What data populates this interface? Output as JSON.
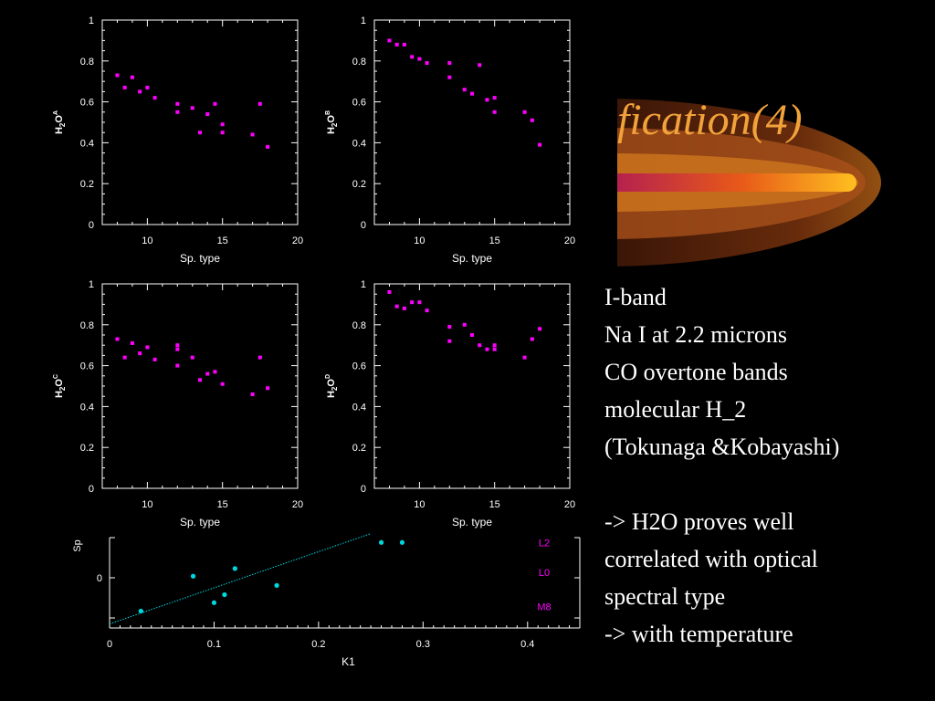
{
  "slide": {
    "title": "fication(4)",
    "bullets": [
      "I-band",
      "Na I at 2.2 microns",
      "CO overtone bands",
      "molecular H_2",
      "(Tokunaga &Kobayashi)",
      "",
      "-> H2O proves well",
      "correlated with optical",
      "spectral type",
      "-> with temperature"
    ],
    "colors": {
      "point": "#ff00ff",
      "fit": "#00d8e0",
      "title": "#f2a23a",
      "axes": "#ffffff"
    }
  },
  "chart_data": [
    {
      "type": "scatter",
      "xlabel": "Sp. type",
      "ylabel_main": "H2O",
      "ylabel_sup": "A",
      "xlim": [
        7,
        20
      ],
      "ylim": [
        0,
        1
      ],
      "xticks": [
        10,
        15,
        20
      ],
      "yticks": [
        0,
        0.2,
        0.4,
        0.6,
        0.8,
        1
      ],
      "yticklabels": [
        "0",
        "0.2",
        "0.4",
        "0.6",
        "0.8",
        "1"
      ],
      "x": [
        8,
        8.5,
        9,
        9.5,
        10,
        10.5,
        12,
        12,
        13,
        13.5,
        14,
        14.5,
        15,
        15,
        17,
        17.5,
        18
      ],
      "y": [
        0.73,
        0.67,
        0.72,
        0.65,
        0.67,
        0.62,
        0.59,
        0.55,
        0.57,
        0.45,
        0.54,
        0.59,
        0.49,
        0.45,
        0.44,
        0.59,
        0.38
      ]
    },
    {
      "type": "scatter",
      "xlabel": "Sp. type",
      "ylabel_main": "H2O",
      "ylabel_sup": "B",
      "xlim": [
        7,
        20
      ],
      "ylim": [
        0,
        1
      ],
      "xticks": [
        10,
        15,
        20
      ],
      "yticks": [
        0,
        0.2,
        0.4,
        0.6,
        0.8,
        1
      ],
      "yticklabels": [
        "0",
        "0.2",
        "0.4",
        "0.6",
        "0.8",
        "1"
      ],
      "x": [
        8,
        8.5,
        9,
        9.5,
        10,
        10.5,
        12,
        12,
        13,
        13.5,
        14,
        14.5,
        15,
        15,
        17,
        17.5,
        18
      ],
      "y": [
        0.9,
        0.88,
        0.88,
        0.82,
        0.81,
        0.79,
        0.79,
        0.72,
        0.66,
        0.64,
        0.78,
        0.61,
        0.62,
        0.55,
        0.55,
        0.51,
        0.39
      ]
    },
    {
      "type": "scatter",
      "xlabel": "Sp. type",
      "ylabel_main": "H2O",
      "ylabel_sup": "C",
      "xlim": [
        7,
        20
      ],
      "ylim": [
        0,
        1
      ],
      "xticks": [
        10,
        15,
        20
      ],
      "yticks": [
        0,
        0.2,
        0.4,
        0.6,
        0.8,
        1
      ],
      "yticklabels": [
        "0",
        "0.2",
        "0.4",
        "0.6",
        "0.8",
        "1"
      ],
      "x": [
        8,
        8.5,
        9,
        9.5,
        10,
        10.5,
        12,
        12,
        12,
        13,
        13.5,
        14,
        14.5,
        15,
        17,
        17.5,
        18
      ],
      "y": [
        0.73,
        0.64,
        0.71,
        0.66,
        0.69,
        0.63,
        0.7,
        0.68,
        0.6,
        0.64,
        0.53,
        0.56,
        0.57,
        0.51,
        0.46,
        0.64,
        0.49
      ]
    },
    {
      "type": "scatter",
      "xlabel": "Sp. type",
      "ylabel_main": "H2O",
      "ylabel_sup": "D",
      "xlim": [
        7,
        20
      ],
      "ylim": [
        0,
        1
      ],
      "xticks": [
        10,
        15,
        20
      ],
      "yticks": [
        0,
        0.2,
        0.4,
        0.6,
        0.8,
        1
      ],
      "yticklabels": [
        "0",
        "0.2",
        "0.4",
        "0.6",
        "0.8",
        "1"
      ],
      "x": [
        8,
        8.5,
        9,
        9.5,
        10,
        10.5,
        12,
        12,
        13,
        13.5,
        14,
        14.5,
        15,
        15,
        17,
        17.5,
        18
      ],
      "y": [
        0.96,
        0.89,
        0.88,
        0.91,
        0.91,
        0.87,
        0.79,
        0.72,
        0.8,
        0.75,
        0.7,
        0.68,
        0.7,
        0.68,
        0.64,
        0.73,
        0.78
      ]
    },
    {
      "type": "scatter",
      "xlabel": "K1",
      "ylabel": "Sp",
      "xlim": [
        0,
        0.45
      ],
      "ylim": [
        -1.25,
        1.0
      ],
      "xticks": [
        0,
        0.1,
        0.2,
        0.3,
        0.4
      ],
      "xticklabels": [
        "0",
        "0.1",
        "0.2",
        "0.3",
        "0.4"
      ],
      "yticks": [
        0
      ],
      "yticklabels": [
        "0"
      ],
      "x": [
        0.03,
        0.08,
        0.1,
        0.11,
        0.12,
        0.16,
        0.26,
        0.28
      ],
      "y": [
        -0.83,
        0.04,
        -0.62,
        -0.42,
        0.23,
        -0.19,
        0.88,
        0.88
      ],
      "fit_line": {
        "x": [
          0,
          0.25
        ],
        "y": [
          -1.15,
          1.1
        ]
      },
      "annotations": [
        "L2",
        "L0",
        "M8"
      ],
      "annotation_values": [
        0.88,
        0.14,
        -0.72
      ]
    }
  ]
}
